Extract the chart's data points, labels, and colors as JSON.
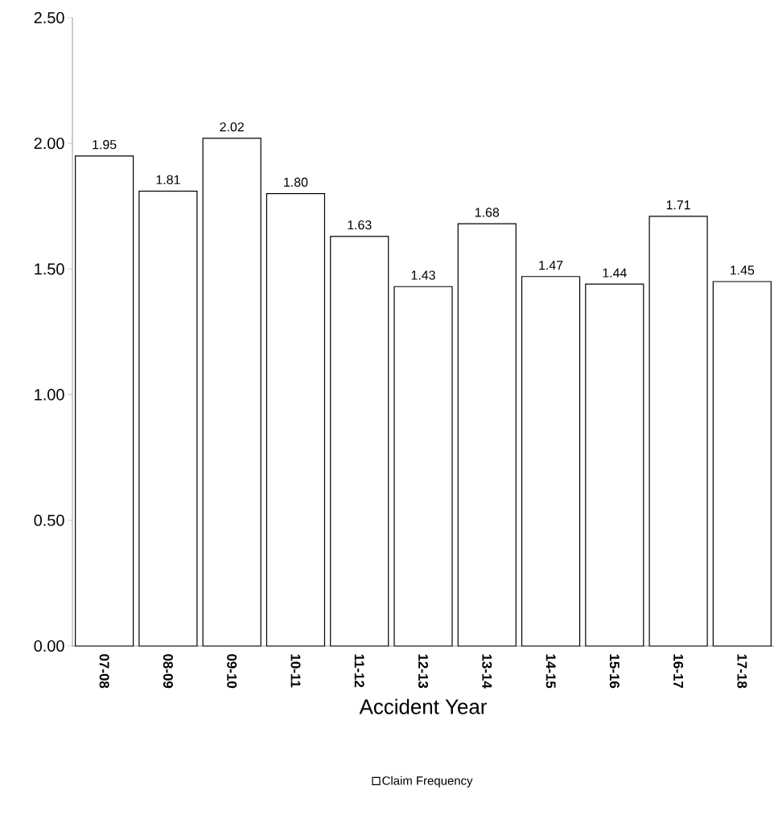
{
  "chart_data": {
    "type": "bar",
    "xlabel": "Accident Year",
    "categories": [
      "07-08",
      "08-09",
      "09-10",
      "10-11",
      "11-12",
      "12-13",
      "13-14",
      "14-15",
      "15-16",
      "16-17",
      "17-18"
    ],
    "series": [
      {
        "name": "Claim Frequency",
        "color": "#ffffff",
        "values": [
          1.95,
          1.81,
          2.02,
          1.8,
          1.63,
          1.43,
          1.68,
          1.47,
          1.44,
          1.71,
          1.45
        ]
      }
    ],
    "value_labels": [
      "1.95",
      "1.81",
      "2.02",
      "1.80",
      "1.63",
      "1.43",
      "1.68",
      "1.47",
      "1.44",
      "1.71",
      "1.45"
    ],
    "ylim": [
      0,
      2.5
    ],
    "yticks": [
      {
        "value": 0,
        "label": "0.00"
      },
      {
        "value": 0.5,
        "label": "0.50"
      },
      {
        "value": 1,
        "label": "1.00"
      },
      {
        "value": 1.5,
        "label": "1.50"
      },
      {
        "value": 2,
        "label": "2.00"
      },
      {
        "value": 2.5,
        "label": "2.50"
      }
    ],
    "grid": false,
    "legend": "bottom"
  }
}
